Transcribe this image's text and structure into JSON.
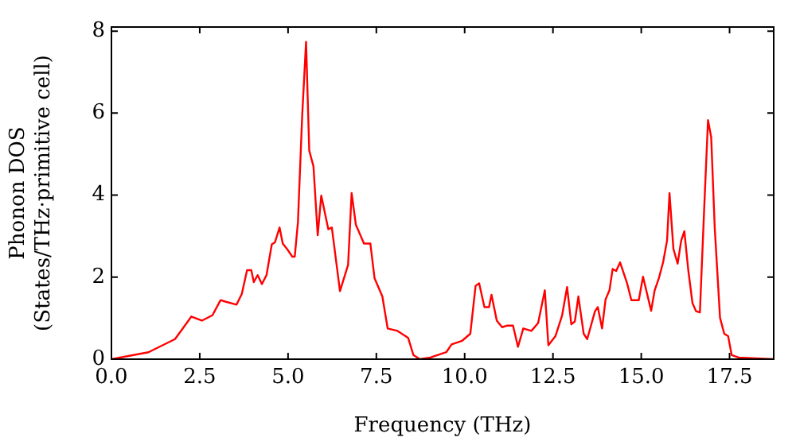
{
  "chart_data": {
    "type": "line",
    "xlabel": "Frequency (THz)",
    "ylabel": "Phonon DOS\n(States/THz·primitive cell)",
    "xlim": [
      0,
      18.75
    ],
    "ylim": [
      0,
      8.1
    ],
    "xticks": [
      {
        "value": 0,
        "label": "0.0"
      },
      {
        "value": 2.5,
        "label": "2.5"
      },
      {
        "value": 5,
        "label": "5.0"
      },
      {
        "value": 7.5,
        "label": "7.5"
      },
      {
        "value": 10,
        "label": "10.0"
      },
      {
        "value": 12.5,
        "label": "12.5"
      },
      {
        "value": 15,
        "label": "15.0"
      },
      {
        "value": 17.5,
        "label": "17.5"
      }
    ],
    "yticks": [
      0,
      2,
      4,
      6,
      8
    ],
    "grid": false,
    "legend": false,
    "marker": "none",
    "line_style": "solid",
    "series": [
      {
        "color": "#ff0000",
        "x": [
          0,
          1.05,
          1.8,
          2.18,
          2.26,
          2.56,
          2.86,
          3.09,
          3.24,
          3.54,
          3.69,
          3.84,
          3.96,
          4.03,
          4.14,
          4.26,
          4.39,
          4.54,
          4.63,
          4.76,
          4.85,
          4.97,
          5.12,
          5.19,
          5.28,
          5.4,
          5.51,
          5.6,
          5.72,
          5.84,
          5.94,
          6.14,
          6.24,
          6.47,
          6.7,
          6.8,
          6.92,
          7.15,
          7.33,
          7.45,
          7.67,
          7.82,
          8.1,
          8.4,
          8.55,
          8.73,
          9.03,
          9.48,
          9.63,
          9.93,
          10.16,
          10.31,
          10.41,
          10.56,
          10.69,
          10.76,
          10.91,
          11.06,
          11.21,
          11.37,
          11.51,
          11.66,
          11.89,
          12.08,
          12.27,
          12.37,
          12.57,
          12.76,
          12.9,
          13.02,
          13.12,
          13.22,
          13.37,
          13.47,
          13.69,
          13.77,
          13.89,
          13.99,
          14.1,
          14.19,
          14.29,
          14.4,
          14.6,
          14.72,
          14.93,
          15.05,
          15.28,
          15.38,
          15.5,
          15.62,
          15.73,
          15.8,
          15.91,
          16.03,
          16.13,
          16.22,
          16.33,
          16.45,
          16.55,
          16.66,
          16.78,
          16.89,
          16.98,
          17.08,
          17.23,
          17.35,
          17.46,
          17.56,
          17.76,
          18.74
        ],
        "values": [
          0,
          0.17,
          0.49,
          0.94,
          1.04,
          0.94,
          1.07,
          1.44,
          1.4,
          1.33,
          1.59,
          2.17,
          2.17,
          1.88,
          2.05,
          1.83,
          2.05,
          2.8,
          2.85,
          3.21,
          2.82,
          2.69,
          2.5,
          2.5,
          3.34,
          5.93,
          7.74,
          5.09,
          4.7,
          3.02,
          3.99,
          3.17,
          3.21,
          1.66,
          2.3,
          4.05,
          3.28,
          2.82,
          2.82,
          1.97,
          1.53,
          0.75,
          0.69,
          0.52,
          0.1,
          0,
          0.04,
          0.17,
          0.36,
          0.45,
          0.62,
          1.79,
          1.85,
          1.27,
          1.27,
          1.57,
          0.94,
          0.78,
          0.82,
          0.82,
          0.3,
          0.75,
          0.69,
          0.88,
          1.68,
          0.34,
          0.56,
          1.07,
          1.76,
          0.85,
          0.92,
          1.53,
          0.62,
          0.49,
          1.17,
          1.27,
          0.75,
          1.46,
          1.68,
          2.2,
          2.15,
          2.36,
          1.85,
          1.44,
          1.44,
          2.01,
          1.18,
          1.68,
          1.98,
          2.37,
          2.89,
          4.05,
          2.69,
          2.33,
          2.89,
          3.12,
          2.18,
          1.37,
          1.17,
          1.14,
          3.64,
          5.83,
          5.41,
          3.21,
          1.01,
          0.62,
          0.56,
          0.1,
          0.04,
          0
        ]
      }
    ]
  }
}
